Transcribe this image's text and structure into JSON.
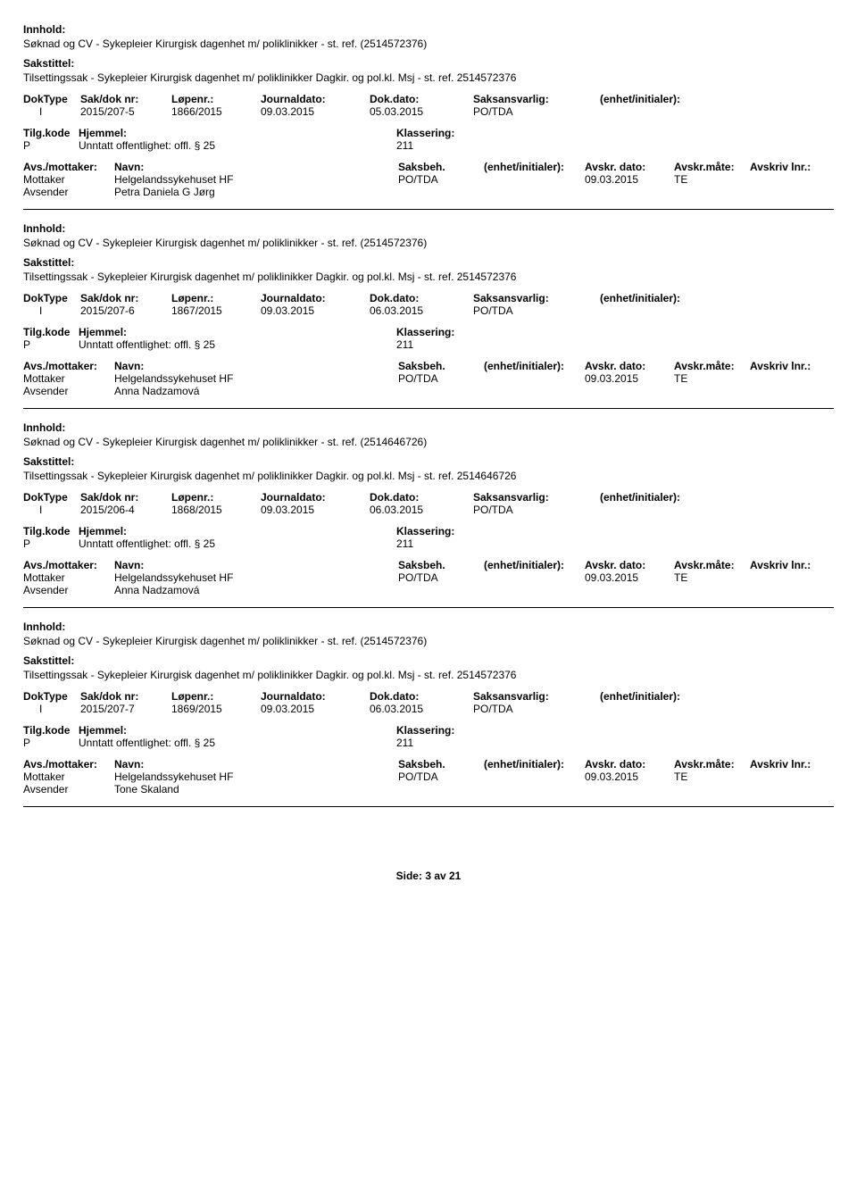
{
  "labels": {
    "innhold": "Innhold:",
    "sakstittel": "Sakstittel:",
    "doktype": "DokType",
    "sakdok": "Sak/dok nr:",
    "lopenr": "Løpenr.:",
    "journaldato": "Journaldato:",
    "dokdato": "Dok.dato:",
    "saksansvarlig": "Saksansvarlig:",
    "enhet": "(enhet/initialer):",
    "tilgkode": "Tilg.kode",
    "hjemmel": "Hjemmel:",
    "klassering": "Klassering:",
    "avsmottaker": "Avs./mottaker:",
    "navn": "Navn:",
    "saksbeh": "Saksbeh.",
    "enhetsaksbeh": "(enhet/initialer):",
    "avskrdato": "Avskr. dato:",
    "avskrmate": "Avskr.måte:",
    "avskrivlnr": "Avskriv lnr.:",
    "mottaker": "Mottaker",
    "avsender": "Avsender"
  },
  "records": [
    {
      "innhold_text": "Søknad og CV - Sykepleier Kirurgisk dagenhet m/ poliklinikker - st. ref. (2514572376)",
      "sakstittel_text": "Tilsettingssak - Sykepleier Kirurgisk dagenhet m/ poliklinikker Dagkir. og pol.kl.  Msj - st. ref. 2514572376",
      "doktype": "I",
      "sakdok": "2015/207-5",
      "lopenr": "1866/2015",
      "journaldato": "09.03.2015",
      "dokdato": "05.03.2015",
      "saksansvarlig": "PO/TDA",
      "enhet": "",
      "tilgkode": "P",
      "hjemmel": "Unntatt offentlighet: offl. § 25",
      "klassering": "211",
      "mottaker_navn": "Helgelandssykehuset HF",
      "mottaker_saksbeh": "PO/TDA",
      "mottaker_enhet": "",
      "mottaker_avskrdato": "09.03.2015",
      "mottaker_avskrmate": "TE",
      "mottaker_avskrivlnr": "",
      "avsender_navn": "Petra Daniela G Jørg"
    },
    {
      "innhold_text": "Søknad og CV - Sykepleier Kirurgisk dagenhet m/ poliklinikker - st. ref. (2514572376)",
      "sakstittel_text": "Tilsettingssak - Sykepleier Kirurgisk dagenhet m/ poliklinikker Dagkir. og pol.kl.  Msj - st. ref. 2514572376",
      "doktype": "I",
      "sakdok": "2015/207-6",
      "lopenr": "1867/2015",
      "journaldato": "09.03.2015",
      "dokdato": "06.03.2015",
      "saksansvarlig": "PO/TDA",
      "enhet": "",
      "tilgkode": "P",
      "hjemmel": "Unntatt offentlighet: offl. § 25",
      "klassering": "211",
      "mottaker_navn": "Helgelandssykehuset HF",
      "mottaker_saksbeh": "PO/TDA",
      "mottaker_enhet": "",
      "mottaker_avskrdato": "09.03.2015",
      "mottaker_avskrmate": "TE",
      "mottaker_avskrivlnr": "",
      "avsender_navn": "Anna Nadzamová"
    },
    {
      "innhold_text": "Søknad og CV - Sykepleier Kirurgisk dagenhet m/ poliklinikker - st. ref. (2514646726)",
      "sakstittel_text": "Tilsettingssak - Sykepleier Kirurgisk dagenhet m/ poliklinikker Dagkir. og pol.kl.  Msj - st. ref. 2514646726",
      "doktype": "I",
      "sakdok": "2015/206-4",
      "lopenr": "1868/2015",
      "journaldato": "09.03.2015",
      "dokdato": "06.03.2015",
      "saksansvarlig": "PO/TDA",
      "enhet": "",
      "tilgkode": "P",
      "hjemmel": "Unntatt offentlighet: offl. § 25",
      "klassering": "211",
      "mottaker_navn": "Helgelandssykehuset HF",
      "mottaker_saksbeh": "PO/TDA",
      "mottaker_enhet": "",
      "mottaker_avskrdato": "09.03.2015",
      "mottaker_avskrmate": "TE",
      "mottaker_avskrivlnr": "",
      "avsender_navn": "Anna Nadzamová"
    },
    {
      "innhold_text": "Søknad og CV - Sykepleier Kirurgisk dagenhet m/ poliklinikker - st. ref. (2514572376)",
      "sakstittel_text": "Tilsettingssak - Sykepleier Kirurgisk dagenhet m/ poliklinikker Dagkir. og pol.kl.  Msj - st. ref. 2514572376",
      "doktype": "I",
      "sakdok": "2015/207-7",
      "lopenr": "1869/2015",
      "journaldato": "09.03.2015",
      "dokdato": "06.03.2015",
      "saksansvarlig": "PO/TDA",
      "enhet": "",
      "tilgkode": "P",
      "hjemmel": "Unntatt offentlighet: offl. § 25",
      "klassering": "211",
      "mottaker_navn": "Helgelandssykehuset HF",
      "mottaker_saksbeh": "PO/TDA",
      "mottaker_enhet": "",
      "mottaker_avskrdato": "09.03.2015",
      "mottaker_avskrmate": "TE",
      "mottaker_avskrivlnr": "",
      "avsender_navn": "Tone Skaland"
    }
  ],
  "footer": "Side: 3 av 21"
}
